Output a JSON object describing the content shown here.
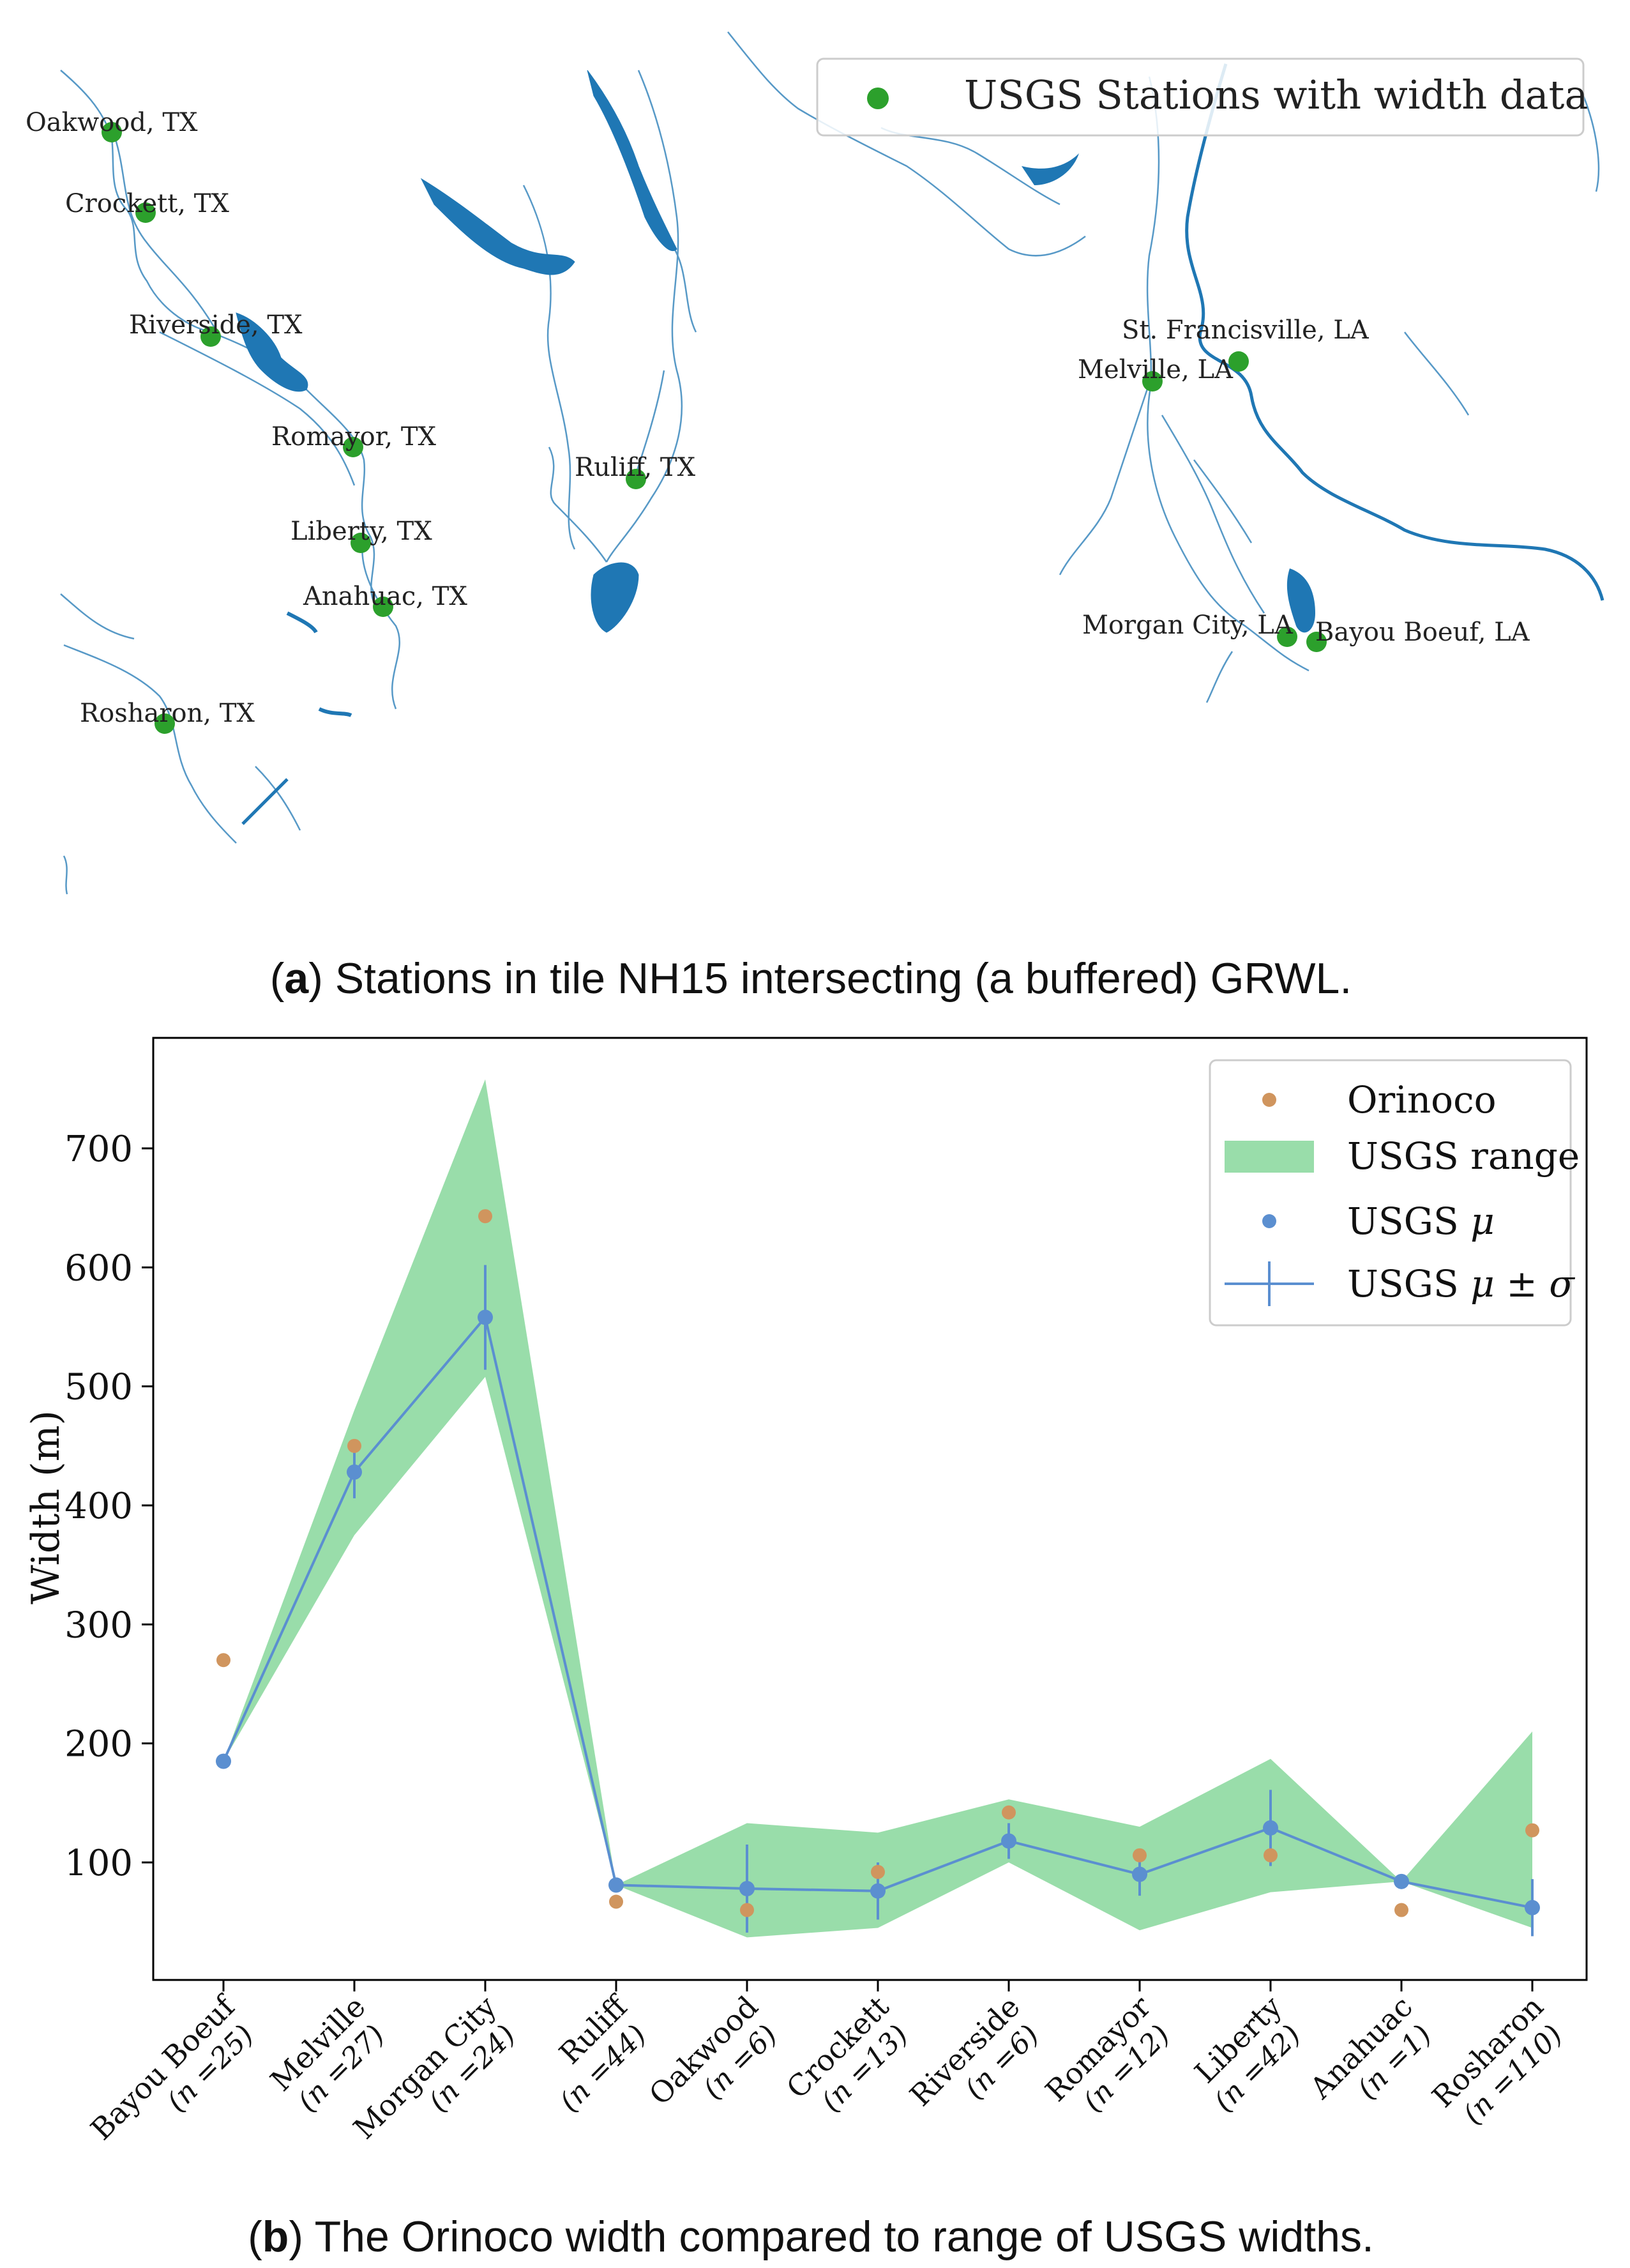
{
  "map": {
    "legend_label": "USGS Stations with width data",
    "stations": [
      {
        "label": "Oakwood, TX"
      },
      {
        "label": "Crockett, TX"
      },
      {
        "label": "Riverside, TX"
      },
      {
        "label": "Romayor, TX"
      },
      {
        "label": "Liberty, TX"
      },
      {
        "label": "Anahuac, TX"
      },
      {
        "label": "Rosharon, TX"
      },
      {
        "label": "Ruliff, TX"
      },
      {
        "label": "St. Francisville, LA"
      },
      {
        "label": "Melville, LA"
      },
      {
        "label": "Morgan City, LA"
      },
      {
        "label": "Bayou Boeuf, LA"
      }
    ],
    "caption": {
      "letter": "a",
      "text": ") Stations in tile NH15 intersecting (a buffered) GRWL."
    }
  },
  "colors": {
    "station": "#2ca02c",
    "river": "#1f77b4",
    "orinoco": "#d0955e",
    "usgs_mean": "#5b8fd0",
    "range_fill": "#7fd595"
  },
  "chart_data": {
    "type": "line",
    "ylabel": "Width (m)",
    "ylim": [
      0,
      790
    ],
    "yticks": [
      100,
      200,
      300,
      400,
      500,
      600,
      700
    ],
    "categories": [
      {
        "name": "Bayou Boeuf",
        "n": "(n =25)"
      },
      {
        "name": "Melville",
        "n": "(n =27)"
      },
      {
        "name": "Morgan City",
        "n": "(n =24)"
      },
      {
        "name": "Ruliff",
        "n": "(n =44)"
      },
      {
        "name": "Oakwood",
        "n": "(n =6)"
      },
      {
        "name": "Crockett",
        "n": "(n =13)"
      },
      {
        "name": "Riverside",
        "n": "(n =6)"
      },
      {
        "name": "Romayor",
        "n": "(n =12)"
      },
      {
        "name": "Liberty",
        "n": "(n =42)"
      },
      {
        "name": "Anahuac",
        "n": "(n =1)"
      },
      {
        "name": "Rosharon",
        "n": "(n =110)"
      }
    ],
    "series": [
      {
        "name": "Orinoco",
        "values": [
          270,
          450,
          643,
          67,
          60,
          92,
          142,
          106,
          106,
          60,
          127
        ]
      },
      {
        "name": "USGS μ",
        "values": [
          185,
          428,
          558,
          81,
          78,
          76,
          118,
          90,
          129,
          84,
          62
        ]
      },
      {
        "name": "USGS σ",
        "values": [
          0,
          22,
          44,
          0,
          37,
          24,
          15,
          18,
          32,
          0,
          24
        ]
      },
      {
        "name": "USGS range min",
        "values": [
          185,
          375,
          508,
          81,
          37,
          45,
          100,
          43,
          75,
          84,
          45
        ]
      },
      {
        "name": "USGS range max",
        "values": [
          185,
          480,
          758,
          81,
          133,
          125,
          153,
          130,
          187,
          84,
          210
        ]
      }
    ],
    "legend": {
      "placement": "top-right",
      "orinoco": "Orinoco",
      "range": "USGS range",
      "mean": "USGS ",
      "mean_sym": "μ",
      "err": "USGS ",
      "err_sym": "μ ± σ"
    },
    "caption": {
      "letter": "b",
      "text": ") The Orinoco width compared to range of USGS widths."
    }
  }
}
